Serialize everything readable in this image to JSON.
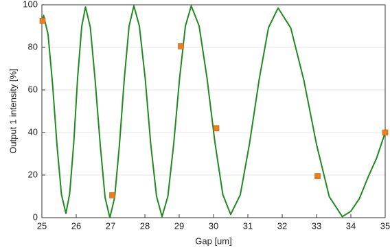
{
  "chart_data": {
    "type": "line",
    "x_label": "Gap [um]",
    "y_label": "Output 1 intensity [%]",
    "xlim": [
      25,
      35
    ],
    "xticks": [
      25,
      26,
      27,
      28,
      29,
      30,
      31,
      32,
      33,
      34,
      35
    ],
    "ylim": [
      0,
      100
    ],
    "yticks": [
      0,
      20,
      40,
      60,
      80,
      100
    ],
    "grid": true,
    "series": [
      {
        "type": "line",
        "color": "#1f8a1f",
        "x": [
          25.0,
          25.05,
          25.18,
          25.31,
          25.44,
          25.57,
          25.7,
          25.81,
          25.93,
          26.04,
          26.16,
          26.27,
          26.41,
          26.55,
          26.7,
          26.84,
          26.98,
          27.12,
          27.26,
          27.4,
          27.54,
          27.68,
          27.84,
          28.01,
          28.17,
          28.34,
          28.5,
          28.67,
          28.84,
          29.01,
          29.18,
          29.35,
          29.58,
          29.81,
          30.04,
          30.27,
          30.5,
          30.78,
          31.05,
          31.33,
          31.6,
          31.88,
          32.25,
          32.63,
          33.0,
          33.37,
          33.75,
          34.0,
          34.25,
          34.5,
          34.75,
          35.0
        ],
        "values": [
          92,
          95,
          86.1,
          62.9,
          34.1,
          10.9,
          2,
          11.3,
          35.5,
          65.5,
          89.7,
          99,
          89.5,
          64.8,
          34.2,
          9.5,
          0,
          9.5,
          34.4,
          65.1,
          90.0,
          99.5,
          90.0,
          65.3,
          34.7,
          10.0,
          0.5,
          10.0,
          34.7,
          65.3,
          90.0,
          99.5,
          90.1,
          65.6,
          35.4,
          10.9,
          1.5,
          10.8,
          35.0,
          65.0,
          89.2,
          98.5,
          89.1,
          64.6,
          34.4,
          9.9,
          0.5,
          3,
          9,
          19,
          28,
          40
        ]
      },
      {
        "type": "scatter",
        "color": "#e8801e",
        "x": [
          25.02,
          27.05,
          29.05,
          30.08,
          33.03,
          35.0
        ],
        "values": [
          92.5,
          10.5,
          80.5,
          42,
          19.5,
          40
        ]
      }
    ]
  }
}
